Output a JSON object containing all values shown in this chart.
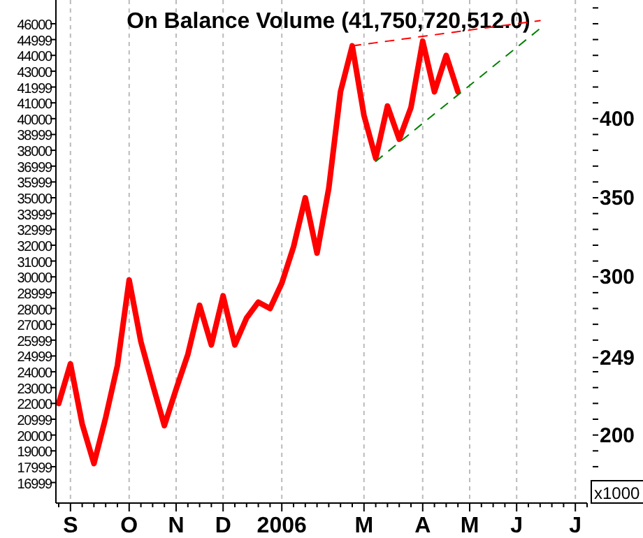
{
  "chart_data": {
    "type": "line",
    "title": "On Balance Volume (41,750,720,512.0)",
    "grid": "x",
    "marker": "none",
    "categories": [
      null,
      "S",
      null,
      null,
      null,
      null,
      "O",
      null,
      null,
      null,
      "N",
      null,
      null,
      null,
      "D",
      null,
      null,
      null,
      null,
      "2006",
      null,
      null,
      null,
      null,
      null,
      null,
      "M",
      null,
      null,
      null,
      null,
      "A",
      null,
      null,
      null,
      "M",
      null,
      null,
      null,
      "J",
      null,
      null,
      null,
      null,
      "J",
      null
    ],
    "ylim": [
      15700,
      47500
    ],
    "yticks": [
      16999,
      17999,
      19000,
      20000,
      20999,
      22000,
      23000,
      24000,
      24999,
      25999,
      27000,
      28000,
      28999,
      30000,
      31000,
      32000,
      32999,
      33999,
      35000,
      35999,
      36999,
      38000,
      38999,
      40000,
      41000,
      41999,
      43000,
      44000,
      44999,
      46000
    ],
    "y2lim": [
      157,
      475
    ],
    "y2label": "x1000",
    "y2ticks": [
      {
        "value": 170,
        "label": null
      },
      {
        "value": 180,
        "label": null
      },
      {
        "value": 190,
        "label": null
      },
      200,
      {
        "value": 210,
        "label": null
      },
      {
        "value": 220,
        "label": null
      },
      {
        "value": 230,
        "label": null
      },
      {
        "value": 240,
        "label": null
      },
      {
        "value": 249,
        "label": "249"
      },
      {
        "value": 260,
        "label": null
      },
      {
        "value": 270,
        "label": null
      },
      {
        "value": 280,
        "label": null
      },
      {
        "value": 290,
        "label": null
      },
      300,
      {
        "value": 310,
        "label": null
      },
      {
        "value": 320,
        "label": null
      },
      {
        "value": 330,
        "label": null
      },
      {
        "value": 340,
        "label": null
      },
      350,
      {
        "value": 360,
        "label": null
      },
      {
        "value": 370,
        "label": null
      },
      {
        "value": 380,
        "label": null
      },
      {
        "value": 390,
        "label": null
      },
      400,
      {
        "value": 410,
        "label": null
      },
      {
        "value": 420,
        "label": null
      },
      {
        "value": 430,
        "label": null
      },
      {
        "value": 440,
        "label": null
      },
      {
        "value": 450,
        "label": null
      },
      {
        "value": 460,
        "label": null
      },
      {
        "value": 470,
        "label": null
      }
    ],
    "series": [
      {
        "color": "#ff0000",
        "line_style": "solid",
        "values": [
          22000,
          24500,
          20700,
          18200,
          21100,
          24400,
          29800,
          25900,
          23200,
          20600,
          22900,
          25100,
          28200,
          25700,
          28800,
          25700,
          27400,
          28400,
          28000,
          29600,
          31900,
          35000,
          31500,
          35600,
          41700,
          44600,
          40200,
          37500,
          40800,
          38700,
          40700,
          44900,
          41700,
          44000,
          41700,
          null,
          null,
          null,
          null,
          null,
          null,
          null,
          null,
          null,
          null,
          null
        ]
      },
      {
        "color": "#ff0000",
        "line_style": "dashed",
        "values": [
          null,
          null,
          null,
          null,
          null,
          null,
          null,
          null,
          null,
          null,
          null,
          null,
          null,
          null,
          null,
          null,
          null,
          null,
          null,
          null,
          null,
          null,
          null,
          null,
          null,
          44600,
          44700,
          44800,
          44900,
          45000,
          45100,
          45200,
          45300,
          45400,
          45500,
          45600,
          45700,
          45800,
          45900,
          46000,
          46100,
          46200,
          null,
          null,
          null,
          null
        ]
      },
      {
        "color": "#008000",
        "line_style": "dashed",
        "values": [
          null,
          null,
          null,
          null,
          null,
          null,
          null,
          null,
          null,
          null,
          null,
          null,
          null,
          null,
          null,
          null,
          null,
          null,
          null,
          null,
          null,
          null,
          null,
          null,
          null,
          null,
          null,
          37300,
          37900,
          38500,
          39100,
          39700,
          40300,
          40900,
          41500,
          42100,
          42700,
          43300,
          43900,
          44500,
          45100,
          45700,
          null,
          null,
          null,
          null
        ]
      }
    ]
  }
}
